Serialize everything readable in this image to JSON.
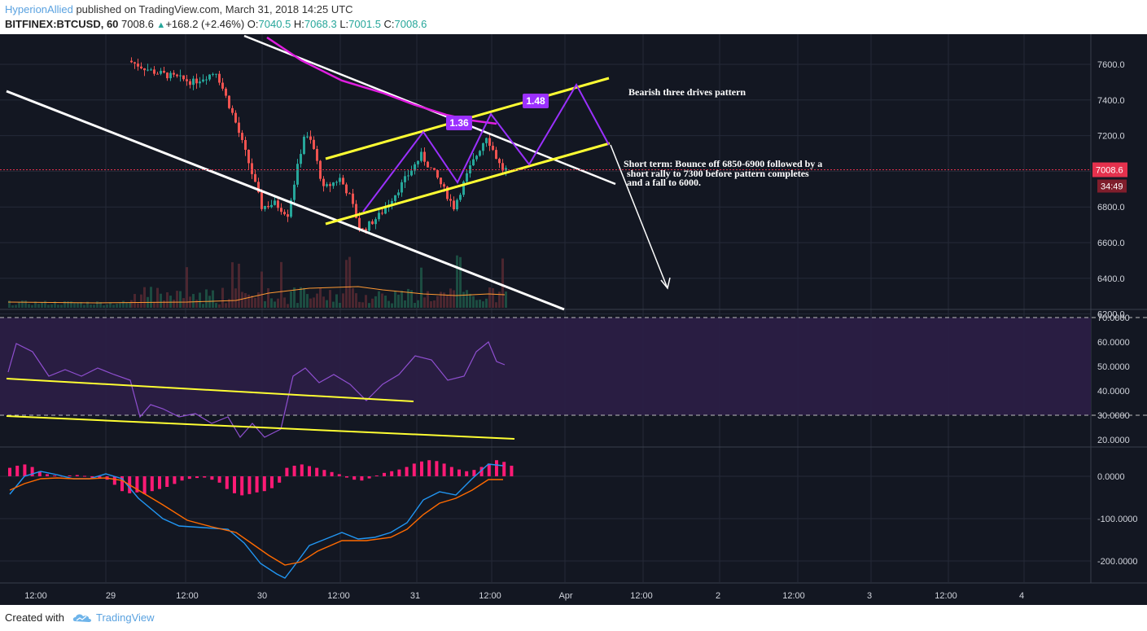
{
  "header": {
    "user": "HyperionAllied",
    "published": " published on TradingView.com, March 31, 2018 14:25 UTC",
    "symbol": "BITFINEX:BTCUSD, 60",
    "last": "7008.6",
    "change": "+168.2 (+2.46%)",
    "o_label": "O:",
    "o": "7040.5",
    "h_label": "H:",
    "h": "7068.3",
    "l_label": "L:",
    "l": "7001.5",
    "c_label": "C:",
    "c": "7008.6"
  },
  "footer": {
    "created": "Created with",
    "brand": "TradingView"
  },
  "colors": {
    "background": "#131722",
    "up": "#26a69a",
    "down": "#ef5350",
    "pattern": "#9b30ff",
    "ma": "#e01ee0",
    "channel": "#ffffff",
    "wedge": "#ffff33",
    "rsi": "#8f4fd0",
    "macd": "#2196f3",
    "signal": "#ff6a00",
    "hist": "#ff1a75",
    "price_label": "#e5314d"
  },
  "chart_data": [
    {
      "type": "candlestick",
      "panel": "price",
      "y_ticks": [
        "7600.0",
        "7400.0",
        "7200.0",
        "7000.0",
        "6800.0",
        "6600.0",
        "6400.0",
        "6200.0"
      ],
      "ylim": [
        6120,
        7660
      ],
      "x_ticks": [
        "12:00",
        "29",
        "12:00",
        "30",
        "12:00",
        "31",
        "12:00",
        "Apr",
        "12:00",
        "2",
        "12:00",
        "3",
        "12:00",
        "4"
      ],
      "last_price_label": "7008.6",
      "countdown_label": "34:49",
      "pattern_labels": [
        "1.36",
        "1.48"
      ],
      "annotations": [
        "Bearish three drives pattern",
        "Short term: Bounce off 6850-6900 followed by a",
        "short rally to 7300 before pattern completes",
        "and a fall to 6000."
      ],
      "pattern_path": [
        [
          6660,
          6660
        ],
        [
          7100,
          7100
        ],
        [
          6800,
          6800
        ],
        [
          7200,
          7200
        ],
        [
          6900,
          6900
        ],
        [
          7350,
          7350
        ],
        [
          7030,
          7030
        ]
      ]
    },
    {
      "type": "line",
      "panel": "rsi",
      "y_ticks": [
        "70.0000",
        "60.0000",
        "50.0000",
        "40.0000",
        "30.0000",
        "20.0000"
      ],
      "ylim": [
        17,
        74
      ],
      "band": [
        30,
        70
      ]
    },
    {
      "type": "bar",
      "panel": "macd",
      "y_ticks": [
        "0.0000",
        "-100.0000",
        "-200.0000"
      ],
      "ylim": [
        -255,
        60
      ],
      "series": [
        "MACD",
        "Signal",
        "Histogram"
      ]
    }
  ]
}
